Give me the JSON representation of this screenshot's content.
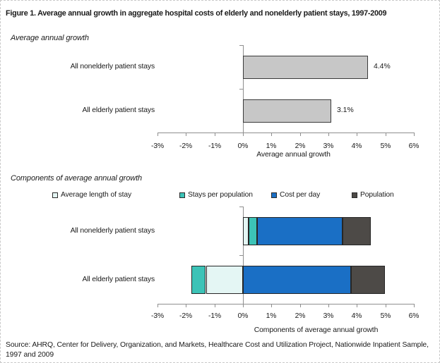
{
  "figure_title": "Figure 1. Average annual growth in aggregate hospital costs of elderly and nonelderly patient stays, 1997-2009",
  "source_note": "Source: AHRQ, Center for Delivery, Organization, and Markets, Healthcare Cost and Utilization Project, Nationwide Inpatient Sample, 1997 and 2009",
  "axis_color": "#8f8f8f",
  "chart_data": [
    {
      "type": "bar",
      "orientation": "horizontal",
      "title": "Average annual growth",
      "categories": [
        "All nonelderly patient stays",
        "All elderly patient stays"
      ],
      "values": [
        4.4,
        3.1
      ],
      "data_labels": [
        "4.4%",
        "3.1%"
      ],
      "xlabel": "Average annual growth",
      "xlim": [
        -3,
        6
      ],
      "xtick_labels": [
        "-3%",
        "-2%",
        "-1%",
        "0%",
        "1%",
        "2%",
        "3%",
        "4%",
        "5%",
        "6%"
      ],
      "bar_fill": "#c7c7c7",
      "bar_border": "#3a3a3a",
      "grid": false,
      "legend": false
    },
    {
      "type": "bar",
      "subtype": "stacked",
      "orientation": "horizontal",
      "title": "Components of average annual growth",
      "categories": [
        "All nonelderly patient stays",
        "All elderly patient stays"
      ],
      "series": [
        {
          "name": "Average length of stay",
          "values": [
            0.2,
            -1.3
          ],
          "color": "#e4f6f4"
        },
        {
          "name": "Stays per population",
          "values": [
            0.3,
            -0.5
          ],
          "color": "#3cc3b7"
        },
        {
          "name": "Cost per day",
          "values": [
            3.0,
            3.8
          ],
          "color": "#1a6fc5"
        },
        {
          "name": "Population",
          "values": [
            1.0,
            1.2
          ],
          "color": "#4d4a47"
        }
      ],
      "xlabel": "Components of average annual growth",
      "xlim": [
        -3,
        6
      ],
      "xtick_labels": [
        "-3%",
        "-2%",
        "-1%",
        "0%",
        "1%",
        "2%",
        "3%",
        "4%",
        "5%",
        "6%"
      ],
      "legend_position": "top",
      "grid": false
    }
  ]
}
